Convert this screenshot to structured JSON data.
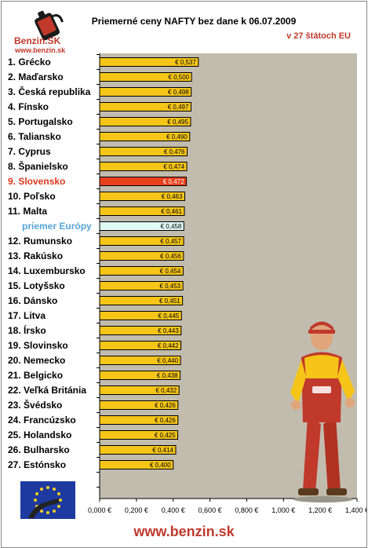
{
  "header": {
    "title": "Priemerné ceny NAFTY bez dane k 06.07.2009",
    "subtitle": "v 27 štátoch EU",
    "logo_text": "Benzin.SK",
    "logo_url": "www.benzin.sk"
  },
  "footer": {
    "url": "www.benzin.sk"
  },
  "colors": {
    "bar": "#f5c518",
    "highlight_bar": "#e8401c",
    "average_bar": "#e0fbf6",
    "highlight_label": "#d9381e",
    "average_label": "#55a4d6",
    "plot_bg": "#c2bcae",
    "brand": "#c0392b"
  },
  "chart_data": {
    "type": "bar",
    "orientation": "horizontal",
    "categories": [
      "1. Grécko",
      "2. Maďarsko",
      "3. Česká republika",
      "4. Fínsko",
      "5. Portugalsko",
      "6. Taliansko",
      "7. Cyprus",
      "8. Španielsko",
      "9. Slovensko",
      "10. Poľsko",
      "11. Malta",
      "priemer Európy",
      "12. Rumunsko",
      "13. Rakúsko",
      "14. Luxembursko",
      "15. Lotyšsko",
      "16. Dánsko",
      "17. Litva",
      "18. Írsko",
      "19. Slovinsko",
      "20. Nemecko",
      "21. Belgicko",
      "22. Veľká Británia",
      "23. Švédsko",
      "24. Francúzsko",
      "25. Holandsko",
      "26. Bulharsko",
      "27. Estónsko"
    ],
    "values": [
      0.537,
      0.5,
      0.498,
      0.497,
      0.495,
      0.49,
      0.476,
      0.474,
      0.472,
      0.463,
      0.461,
      0.458,
      0.457,
      0.456,
      0.454,
      0.453,
      0.451,
      0.445,
      0.443,
      0.442,
      0.44,
      0.438,
      0.432,
      0.426,
      0.426,
      0.425,
      0.414,
      0.4
    ],
    "value_labels": [
      "€ 0,537",
      "€ 0,500",
      "€ 0,498",
      "€ 0,497",
      "€ 0,495",
      "€ 0,490",
      "€ 0,476",
      "€ 0,474",
      "€ 0,472",
      "€ 0,463",
      "€ 0,461",
      "€ 0,458",
      "€ 0,457",
      "€ 0,456",
      "€ 0,454",
      "€ 0,453",
      "€ 0,451",
      "€ 0,445",
      "€ 0,443",
      "€ 0,442",
      "€ 0,440",
      "€ 0,438",
      "€ 0,432",
      "€ 0,426",
      "€ 0,426",
      "€ 0,425",
      "€ 0,414",
      "€ 0,400"
    ],
    "highlight_index": 8,
    "average_index": 11,
    "xlim": [
      0,
      1.4
    ],
    "xticks": [
      0,
      0.2,
      0.4,
      0.6,
      0.8,
      1.0,
      1.2,
      1.4
    ],
    "xtick_labels": [
      "0,000 €",
      "0,200 €",
      "0,400 €",
      "0,600 €",
      "0,800 €",
      "1,000 €",
      "1,200 €",
      "1,400 €"
    ],
    "grid": false,
    "legend": "none"
  }
}
